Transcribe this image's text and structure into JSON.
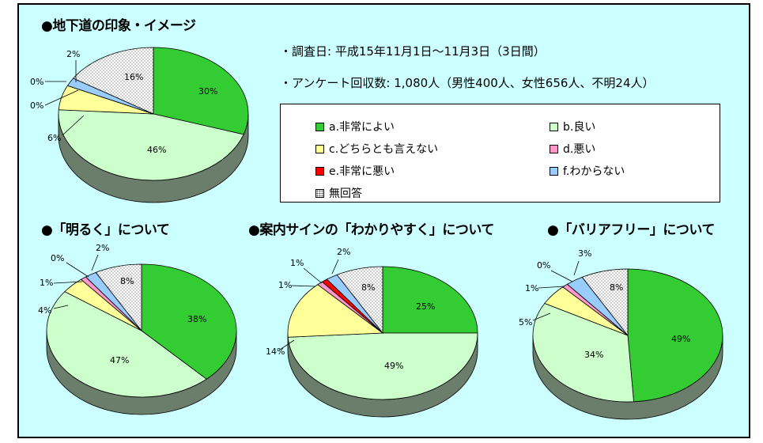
{
  "colors": {
    "a": "#33cc33",
    "b": "#ccffcc",
    "c": "#ffff99",
    "d": "#ff99cc",
    "e": "#ff0000",
    "f": "#99ccff",
    "g": "#ffffff",
    "background": "#ccffff"
  },
  "info": {
    "period": "・調査日: 平成15年11月1日～11月3日（3日間）",
    "responses": "・アンケート回収数: 1,080人（男性400人、女性656人、不明24人）"
  },
  "legend": [
    {
      "key": "a",
      "label": "a.非常によい"
    },
    {
      "key": "b",
      "label": "b.良い"
    },
    {
      "key": "c",
      "label": "c.どちらとも言えない"
    },
    {
      "key": "d",
      "label": "d.悪い"
    },
    {
      "key": "e",
      "label": "e.非常に悪い"
    },
    {
      "key": "f",
      "label": "f.わからない"
    },
    {
      "key": "g",
      "label": "無回答"
    }
  ],
  "chart_data": [
    {
      "type": "pie",
      "title": "●地下道の印象・イメージ",
      "categories": [
        "a.非常によい",
        "b.良い",
        "c.どちらとも言えない",
        "d.悪い",
        "e.非常に悪い",
        "f.わからない",
        "無回答"
      ],
      "values": [
        30,
        46,
        6,
        0,
        0,
        2,
        16
      ],
      "labels": [
        "30%",
        "46%",
        "6%",
        "0%",
        "0%",
        "2%",
        "16%"
      ]
    },
    {
      "type": "pie",
      "title": "●「明るく」について",
      "categories": [
        "a.非常によい",
        "b.良い",
        "c.どちらとも言えない",
        "d.悪い",
        "e.非常に悪い",
        "f.わからない",
        "無回答"
      ],
      "values": [
        38,
        47,
        4,
        1,
        0,
        2,
        8
      ],
      "labels": [
        "38%",
        "47%",
        "4%",
        "1%",
        "0%",
        "2%",
        "8%"
      ]
    },
    {
      "type": "pie",
      "title": "●案内サインの「わかりやすく」について",
      "categories": [
        "a.非常によい",
        "b.良い",
        "c.どちらとも言えない",
        "d.悪い",
        "e.非常に悪い",
        "f.わからない",
        "無回答"
      ],
      "values": [
        25,
        49,
        14,
        1,
        1,
        2,
        8
      ],
      "labels": [
        "25%",
        "49%",
        "14%",
        "1%",
        "1%",
        "2%",
        "8%"
      ]
    },
    {
      "type": "pie",
      "title": "●「バリアフリー」について",
      "categories": [
        "a.非常によい",
        "b.良い",
        "c.どちらとも言えない",
        "d.悪い",
        "e.非常に悪い",
        "f.わからない",
        "無回答"
      ],
      "values": [
        49,
        34,
        5,
        1,
        0,
        3,
        8
      ],
      "labels": [
        "49%",
        "34%",
        "5%",
        "1%",
        "0%",
        "3%",
        "8%"
      ]
    }
  ]
}
